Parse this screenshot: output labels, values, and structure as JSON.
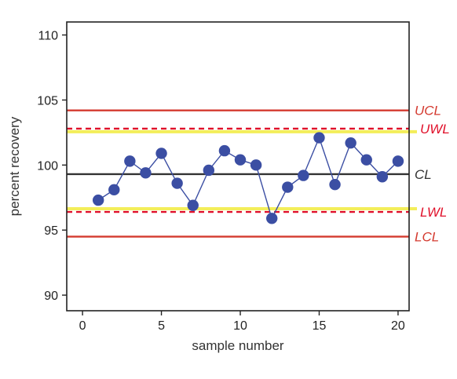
{
  "chart_data": {
    "type": "line",
    "xlabel": "sample number",
    "ylabel": "percent recovery",
    "xlim": [
      -1,
      20.7
    ],
    "ylim": [
      88.8,
      111
    ],
    "xticks": [
      0,
      5,
      10,
      15,
      20
    ],
    "yticks": [
      90,
      95,
      100,
      105,
      110
    ],
    "grid": false,
    "series": [
      {
        "color": "#3b4ea3",
        "x": [
          1,
          2,
          3,
          4,
          5,
          6,
          7,
          8,
          9,
          10,
          11,
          12,
          13,
          14,
          15,
          16,
          17,
          18,
          19,
          20
        ],
        "y": [
          97.3,
          98.1,
          100.3,
          99.4,
          100.9,
          98.6,
          96.9,
          99.6,
          101.1,
          100.4,
          100.0,
          95.9,
          98.3,
          99.2,
          102.1,
          98.5,
          101.7,
          100.4,
          99.1,
          100.3
        ]
      }
    ],
    "reference_lines": [
      {
        "label": "UCL",
        "y": 104.2,
        "color": "#d43a2f",
        "style": "solid"
      },
      {
        "label": "UWL",
        "y": 102.8,
        "color": "#e0102a",
        "style": "dashed",
        "band_color": "#f3ee5a"
      },
      {
        "label": "CL",
        "y": 99.3,
        "color": "#333333",
        "style": "solid"
      },
      {
        "label": "LWL",
        "y": 96.4,
        "color": "#e0102a",
        "style": "dashed",
        "band_color": "#f3ee5a"
      },
      {
        "label": "LCL",
        "y": 94.5,
        "color": "#d43a2f",
        "style": "solid"
      }
    ]
  }
}
